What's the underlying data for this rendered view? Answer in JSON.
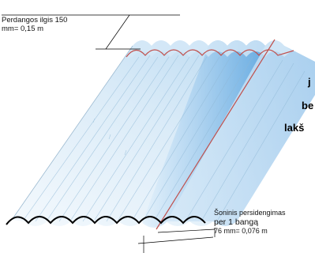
{
  "labels": {
    "end_overlap_line1": "Perdangos ilgis 150",
    "end_overlap_line2": "mm= 0,15 m",
    "side_overlap_line1": "Šoninis persidengimas",
    "side_overlap_line2": "per 1 bangą",
    "side_overlap_line3": "76 mm= 0,076 m"
  },
  "cut_text": {
    "line1": "j",
    "line2": "be",
    "line3": "lakš"
  },
  "colors": {
    "sheet_light": "#e8f3fb",
    "sheet_mid": "#bcdcf2",
    "overlap_blue": "#6fb2e6",
    "overlap_edge": "#c0504d",
    "outline": "#000000"
  }
}
